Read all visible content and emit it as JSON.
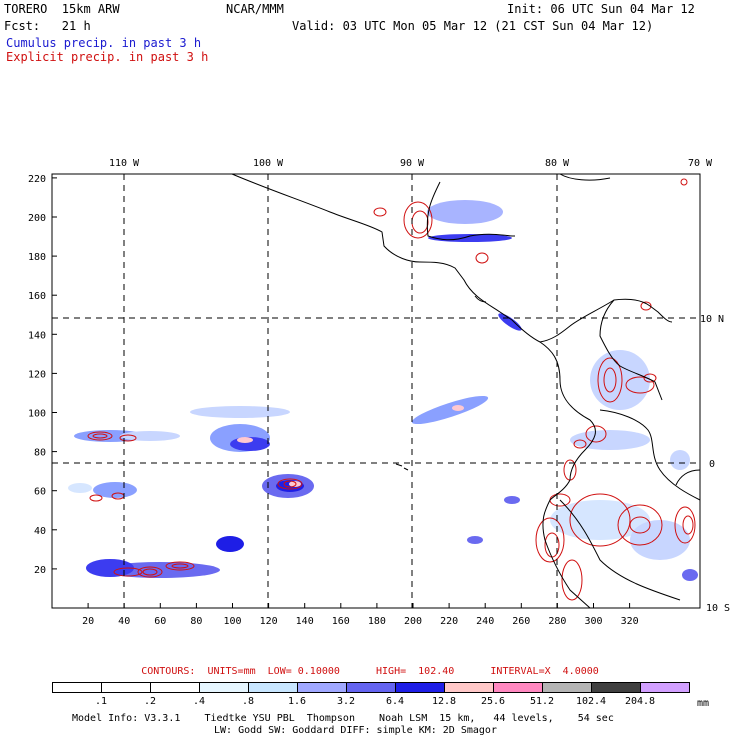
{
  "header": {
    "model": "TORERO  15km ARW",
    "org": "NCAR/MMM",
    "init": "Init: 06 UTC Sun 04 Mar 12",
    "fcst": "Fcst:   21 h",
    "valid": "Valid: 03 UTC Mon 05 Mar 12 (21 CST Sun 04 Mar 12)",
    "cumulus": "Cumulus precip. in past 3 h",
    "explicit": "Explicit precip. in past 3 h"
  },
  "map": {
    "lon_labels": [
      "110 W",
      "100 W",
      "90 W",
      "80 W",
      "70 W"
    ],
    "lat_labels": [
      "10 N",
      "0",
      "10 S"
    ],
    "x_ticks": [
      "20",
      "40",
      "60",
      "80",
      "100",
      "120",
      "140",
      "160",
      "180",
      "200",
      "220",
      "240",
      "260",
      "280",
      "300",
      "320"
    ],
    "y_ticks": [
      "20",
      "40",
      "60",
      "80",
      "100",
      "120",
      "140",
      "160",
      "180",
      "200",
      "220"
    ],
    "colors": {
      "coast": "#000000",
      "cumulus": "#1a1ad0",
      "explicit": "#d01010"
    }
  },
  "contours": "CONTOURS:  UNITS=mm  LOW= 0.10000      HIGH=  102.40      INTERVAL=X  4.0000",
  "legend": {
    "colors": [
      "#ffffff",
      "#ffffff",
      "#ffffff",
      "#e6f6ff",
      "#c8e6ff",
      "#a0a8ff",
      "#6464f0",
      "#1e1ee6",
      "#ffc8c8",
      "#ff88c0",
      "#b4b4b4",
      "#404040",
      "#d2a0ff"
    ],
    "labels": [
      ".1",
      ".2",
      ".4",
      ".8",
      "1.6",
      "3.2",
      "6.4",
      "12.8",
      "25.6",
      "51.2",
      "102.4",
      "204.8"
    ],
    "units": "mm"
  },
  "footer": {
    "line1": "Model Info: V3.3.1    Tiedtke YSU PBL  Thompson    Noah LSM  15 km,   44 levels,    54 sec",
    "line2": "LW: Godd SW: Goddard DIFF: simple KM: 2D Smagor"
  }
}
